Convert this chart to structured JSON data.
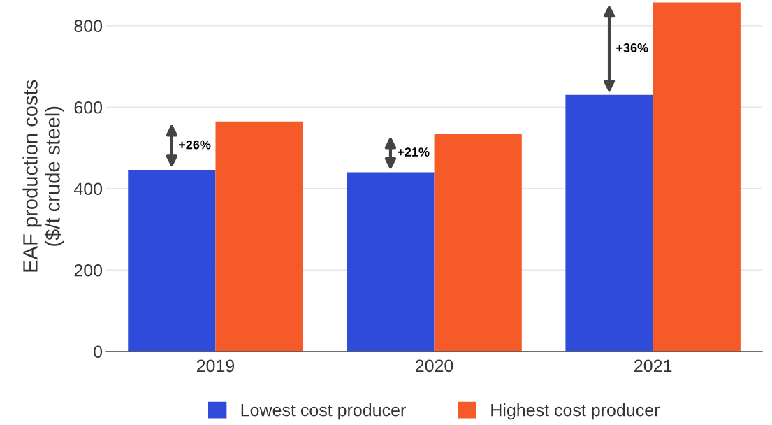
{
  "chart_data": {
    "type": "bar",
    "ylabel": "EAF production costs\n($/t crude steel)",
    "categories": [
      "2019",
      "2020",
      "2021"
    ],
    "series": [
      {
        "name": "Lowest cost producer",
        "color": "#2e4bd9",
        "values": [
          446,
          440,
          630
        ]
      },
      {
        "name": "Highest cost producer",
        "color": "#f55a28",
        "values": [
          565,
          534,
          857
        ]
      }
    ],
    "ylim": [
      0,
      860
    ],
    "yticks": [
      0,
      200,
      400,
      600,
      800
    ],
    "grid": "y",
    "legend": "bottom",
    "annotations": [
      {
        "text": "+26%",
        "x": "2019",
        "y": 505
      },
      {
        "text": "+21%",
        "x": "2020",
        "y": 487
      },
      {
        "text": "+36%",
        "x": "2021",
        "y": 743
      }
    ]
  }
}
